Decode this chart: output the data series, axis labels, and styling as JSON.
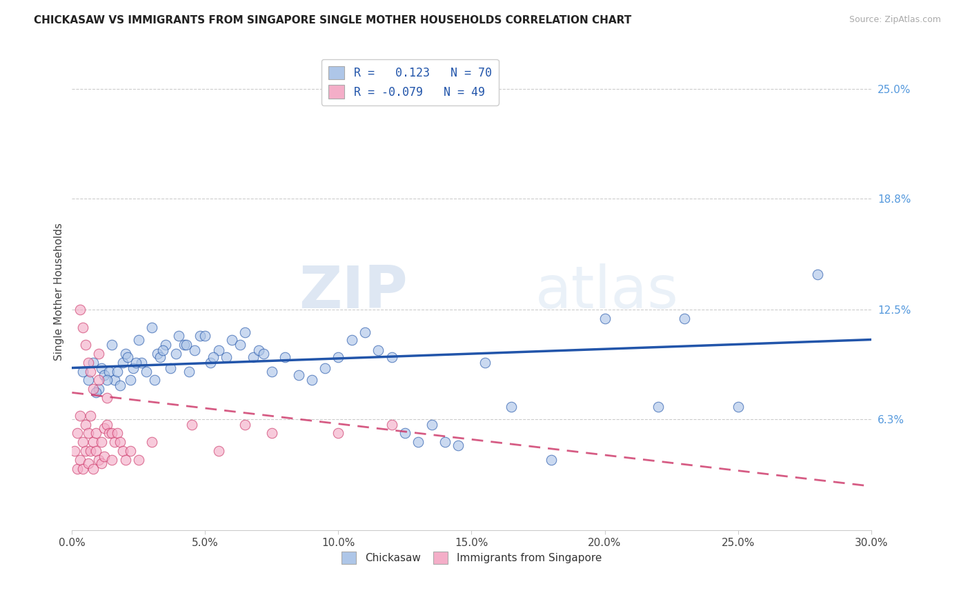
{
  "title": "CHICKASAW VS IMMIGRANTS FROM SINGAPORE SINGLE MOTHER HOUSEHOLDS CORRELATION CHART",
  "source": "Source: ZipAtlas.com",
  "xlabel_vals": [
    0.0,
    5.0,
    10.0,
    15.0,
    20.0,
    25.0,
    30.0
  ],
  "ylabel_ticks_right": [
    "25.0%",
    "18.8%",
    "12.5%",
    "6.3%"
  ],
  "ylabel_vals_right": [
    25.0,
    18.8,
    12.5,
    6.3
  ],
  "xmin": 0.0,
  "xmax": 30.0,
  "ymin": 0.0,
  "ymax": 27.0,
  "ylabel": "Single Mother Households",
  "legend_blue_r": "0.123",
  "legend_blue_n": "70",
  "legend_pink_r": "-0.079",
  "legend_pink_n": "49",
  "legend_label1": "Chickasaw",
  "legend_label2": "Immigrants from Singapore",
  "blue_color": "#aec6e8",
  "blue_line_color": "#2255aa",
  "pink_color": "#f4aec8",
  "pink_line_color": "#cc3366",
  "watermark_zip": "ZIP",
  "watermark_atlas": "atlas",
  "blue_scatter_x": [
    0.4,
    0.6,
    0.8,
    1.0,
    1.1,
    1.2,
    1.4,
    1.5,
    1.6,
    1.7,
    1.8,
    1.9,
    2.0,
    2.1,
    2.2,
    2.3,
    2.5,
    2.6,
    2.8,
    3.0,
    3.1,
    3.2,
    3.3,
    3.5,
    3.7,
    3.9,
    4.0,
    4.2,
    4.4,
    4.6,
    4.8,
    5.0,
    5.2,
    5.5,
    5.8,
    6.0,
    6.3,
    6.5,
    6.8,
    7.0,
    7.2,
    7.5,
    8.0,
    8.5,
    9.0,
    9.5,
    10.0,
    10.5,
    11.0,
    11.5,
    12.0,
    12.5,
    13.0,
    13.5,
    14.0,
    14.5,
    15.5,
    16.5,
    18.0,
    20.0,
    22.0,
    23.0,
    25.0,
    28.0,
    0.9,
    1.3,
    2.4,
    3.4,
    4.3,
    5.3
  ],
  "blue_scatter_y": [
    9.0,
    8.5,
    9.5,
    8.0,
    9.2,
    8.8,
    9.0,
    10.5,
    8.5,
    9.0,
    8.2,
    9.5,
    10.0,
    9.8,
    8.5,
    9.2,
    10.8,
    9.5,
    9.0,
    11.5,
    8.5,
    10.0,
    9.8,
    10.5,
    9.2,
    10.0,
    11.0,
    10.5,
    9.0,
    10.2,
    11.0,
    11.0,
    9.5,
    10.2,
    9.8,
    10.8,
    10.5,
    11.2,
    9.8,
    10.2,
    10.0,
    9.0,
    9.8,
    8.8,
    8.5,
    9.2,
    9.8,
    10.8,
    11.2,
    10.2,
    9.8,
    5.5,
    5.0,
    6.0,
    5.0,
    4.8,
    9.5,
    7.0,
    4.0,
    12.0,
    7.0,
    12.0,
    7.0,
    14.5,
    7.8,
    8.5,
    9.5,
    10.2,
    10.5,
    9.8
  ],
  "pink_scatter_x": [
    0.1,
    0.2,
    0.2,
    0.3,
    0.3,
    0.4,
    0.4,
    0.5,
    0.5,
    0.6,
    0.6,
    0.7,
    0.7,
    0.8,
    0.8,
    0.9,
    0.9,
    1.0,
    1.0,
    1.1,
    1.1,
    1.2,
    1.2,
    1.3,
    1.4,
    1.5,
    1.5,
    1.6,
    1.7,
    1.8,
    1.9,
    2.0,
    2.2,
    2.5,
    3.0,
    4.5,
    5.5,
    6.5,
    7.5,
    10.0,
    12.0,
    0.3,
    0.4,
    0.5,
    0.6,
    0.7,
    0.8,
    1.0,
    1.3
  ],
  "pink_scatter_y": [
    4.5,
    5.5,
    3.5,
    6.5,
    4.0,
    5.0,
    3.5,
    4.5,
    6.0,
    5.5,
    3.8,
    6.5,
    4.5,
    5.0,
    3.5,
    5.5,
    4.5,
    4.0,
    8.5,
    5.0,
    3.8,
    5.8,
    4.2,
    6.0,
    5.5,
    4.0,
    5.5,
    5.0,
    5.5,
    5.0,
    4.5,
    4.0,
    4.5,
    4.0,
    5.0,
    6.0,
    4.5,
    6.0,
    5.5,
    5.5,
    6.0,
    12.5,
    11.5,
    10.5,
    9.5,
    9.0,
    8.0,
    10.0,
    7.5
  ]
}
